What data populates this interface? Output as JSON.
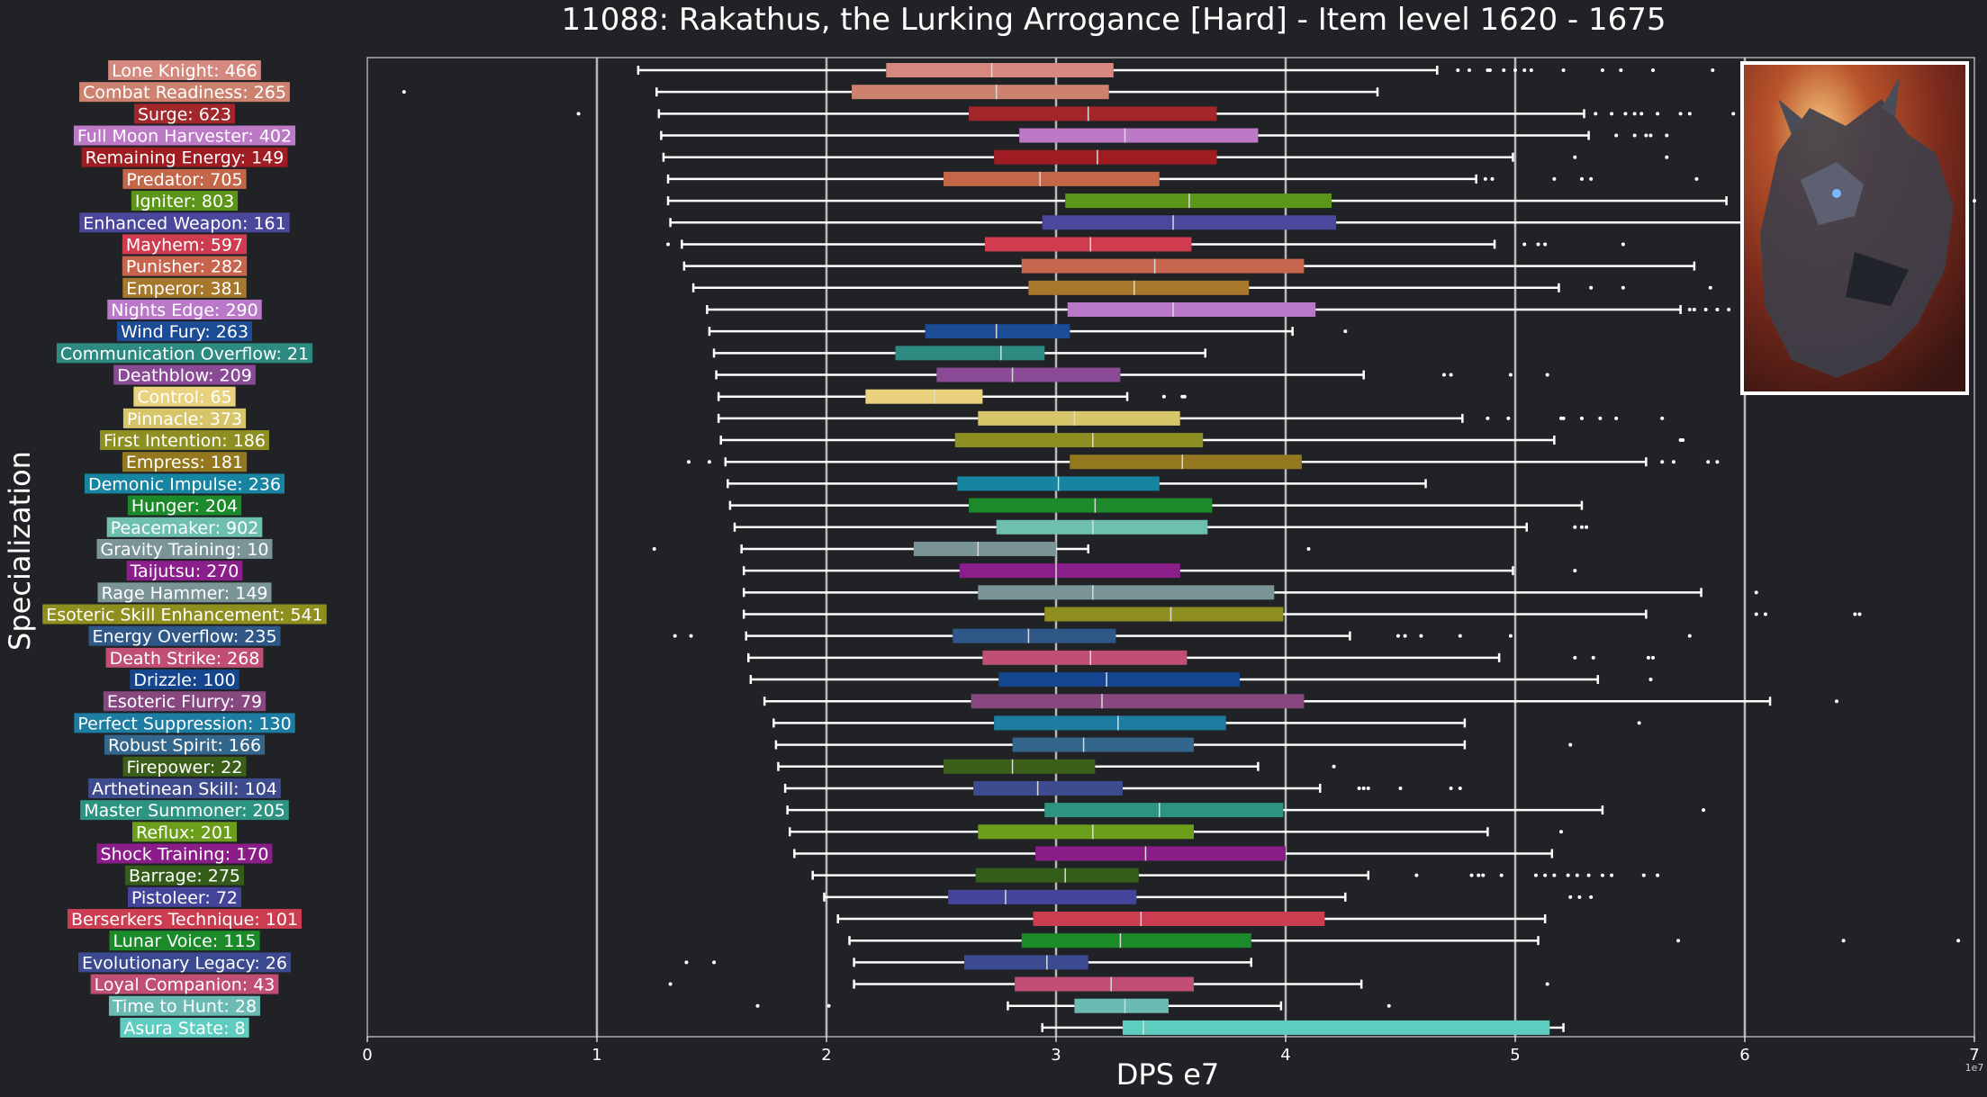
{
  "chart_data": {
    "type": "box",
    "title": "11088: Rakathus, the Lurking Arrogance [Hard] - Item level 1620 - 1675",
    "xlabel": "DPS e7",
    "ylabel": "Specialization",
    "x_exponent_label": "1e7",
    "xlim": [
      0,
      7
    ],
    "x_ticks": [
      0,
      1,
      2,
      3,
      4,
      5,
      6,
      7
    ],
    "grid": "vertical",
    "series": [
      {
        "label": "Lone Knight: 466",
        "color": "#d5897e",
        "whisker_low": 1.18,
        "q1": 2.26,
        "median": 2.72,
        "q3": 3.25,
        "whisker_high": 4.66,
        "outliers": [
          4.75,
          4.8,
          4.88,
          4.89,
          4.95,
          5.0,
          5.04,
          5.07,
          5.21,
          5.38,
          5.46,
          5.6,
          5.86
        ]
      },
      {
        "label": "Combat Readiness: 265",
        "color": "#cd8270",
        "whisker_low": 1.26,
        "q1": 2.11,
        "median": 2.74,
        "q3": 3.23,
        "whisker_high": 4.4,
        "outliers": [
          0.16
        ]
      },
      {
        "label": "Surge: 623",
        "color": "#a3262a",
        "whisker_low": 1.27,
        "q1": 2.62,
        "median": 3.14,
        "q3": 3.7,
        "whisker_high": 5.3,
        "outliers": [
          0.92,
          5.35,
          5.42,
          5.48,
          5.52,
          5.55,
          5.62,
          5.72,
          5.76,
          5.95
        ]
      },
      {
        "label": "Full Moon Harvester: 402",
        "color": "#bb79c6",
        "whisker_low": 1.28,
        "q1": 2.84,
        "median": 3.3,
        "q3": 3.88,
        "whisker_high": 5.32,
        "outliers": [
          5.44,
          5.52,
          5.57,
          5.59,
          5.66
        ]
      },
      {
        "label": "Remaining Energy: 149",
        "color": "#9e1c22",
        "whisker_low": 1.29,
        "q1": 2.73,
        "median": 3.18,
        "q3": 3.7,
        "whisker_high": 4.99,
        "outliers": [
          5.26,
          5.66
        ]
      },
      {
        "label": "Predator: 705",
        "color": "#c46749",
        "whisker_low": 1.31,
        "q1": 2.51,
        "median": 2.93,
        "q3": 3.45,
        "whisker_high": 4.83,
        "outliers": [
          4.87,
          4.9,
          5.17,
          5.29,
          5.33,
          5.79
        ]
      },
      {
        "label": "Igniter: 803",
        "color": "#5c9618",
        "whisker_low": 1.31,
        "q1": 3.04,
        "median": 3.58,
        "q3": 4.2,
        "whisker_high": 5.92,
        "outliers": [
          7.0
        ]
      },
      {
        "label": "Enhanced Weapon: 161",
        "color": "#4b479c",
        "whisker_low": 1.32,
        "q1": 2.94,
        "median": 3.51,
        "q3": 4.22,
        "whisker_high": 6.12,
        "outliers": []
      },
      {
        "label": "Mayhem: 597",
        "color": "#cf3b4f",
        "whisker_low": 1.37,
        "q1": 2.69,
        "median": 3.15,
        "q3": 3.59,
        "whisker_high": 4.91,
        "outliers": [
          1.31,
          5.04,
          5.1,
          5.13,
          5.47
        ]
      },
      {
        "label": "Punisher: 282",
        "color": "#c6644d",
        "whisker_low": 1.38,
        "q1": 2.85,
        "median": 3.43,
        "q3": 4.08,
        "whisker_high": 5.78,
        "outliers": []
      },
      {
        "label": "Emperor: 381",
        "color": "#a7782b",
        "whisker_low": 1.42,
        "q1": 2.88,
        "median": 3.34,
        "q3": 3.84,
        "whisker_high": 5.19,
        "outliers": [
          5.33,
          5.47,
          5.85
        ]
      },
      {
        "label": "Nights Edge: 290",
        "color": "#ba78c9",
        "whisker_low": 1.48,
        "q1": 3.05,
        "median": 3.51,
        "q3": 4.13,
        "whisker_high": 5.72,
        "outliers": [
          5.76,
          5.78,
          5.83,
          5.88,
          5.93,
          6.01
        ]
      },
      {
        "label": "Wind Fury: 263",
        "color": "#1c4c95",
        "whisker_low": 1.49,
        "q1": 2.43,
        "median": 2.74,
        "q3": 3.06,
        "whisker_high": 4.03,
        "outliers": [
          4.26
        ]
      },
      {
        "label": "Communication Overflow: 21",
        "color": "#2c8a81",
        "whisker_low": 1.51,
        "q1": 2.3,
        "median": 2.76,
        "q3": 2.95,
        "whisker_high": 3.65,
        "outliers": []
      },
      {
        "label": "Deathblow: 209",
        "color": "#8a4a95",
        "whisker_low": 1.52,
        "q1": 2.48,
        "median": 2.81,
        "q3": 3.28,
        "whisker_high": 4.34,
        "outliers": [
          4.69,
          4.72,
          4.98,
          5.14
        ]
      },
      {
        "label": "Control: 65",
        "color": "#e9d17e",
        "whisker_low": 1.53,
        "q1": 2.17,
        "median": 2.47,
        "q3": 2.68,
        "whisker_high": 3.31,
        "outliers": [
          3.47,
          3.55,
          3.56
        ]
      },
      {
        "label": "Pinnacle: 373",
        "color": "#d7c56a",
        "whisker_low": 1.53,
        "q1": 2.66,
        "median": 3.08,
        "q3": 3.54,
        "whisker_high": 4.77,
        "outliers": [
          4.88,
          4.97,
          5.2,
          5.21,
          5.29,
          5.37,
          5.44,
          5.64
        ]
      },
      {
        "label": "First Intention: 186",
        "color": "#8d8f22",
        "whisker_low": 1.54,
        "q1": 2.56,
        "median": 3.16,
        "q3": 3.64,
        "whisker_high": 5.17,
        "outliers": [
          5.72,
          5.73
        ]
      },
      {
        "label": "Empress: 181",
        "color": "#93781f",
        "whisker_low": 1.56,
        "q1": 3.06,
        "median": 3.55,
        "q3": 4.07,
        "whisker_high": 5.57,
        "outliers": [
          1.4,
          1.49,
          5.64,
          5.69,
          5.84,
          5.88
        ]
      },
      {
        "label": "Demonic Impulse: 236",
        "color": "#1784a1",
        "whisker_low": 1.57,
        "q1": 2.57,
        "median": 3.01,
        "q3": 3.45,
        "whisker_high": 4.61,
        "outliers": []
      },
      {
        "label": "Hunger: 204",
        "color": "#1c8a2a",
        "whisker_low": 1.58,
        "q1": 2.62,
        "median": 3.17,
        "q3": 3.68,
        "whisker_high": 5.29,
        "outliers": []
      },
      {
        "label": "Peacemaker: 902",
        "color": "#6fbfb0",
        "whisker_low": 1.6,
        "q1": 2.74,
        "median": 3.16,
        "q3": 3.66,
        "whisker_high": 5.05,
        "outliers": [
          5.26,
          5.29,
          5.31
        ]
      },
      {
        "label": "Gravity Training: 10",
        "color": "#7a9497",
        "whisker_low": 1.63,
        "q1": 2.38,
        "median": 2.66,
        "q3": 3.0,
        "whisker_high": 3.14,
        "outliers": [
          1.25,
          4.1
        ]
      },
      {
        "label": "Taijutsu: 270",
        "color": "#8a1f8c",
        "whisker_low": 1.64,
        "q1": 2.58,
        "median": 3.0,
        "q3": 3.54,
        "whisker_high": 4.99,
        "outliers": [
          5.26
        ]
      },
      {
        "label": "Rage Hammer: 149",
        "color": "#7b9498",
        "whisker_low": 1.64,
        "q1": 2.66,
        "median": 3.16,
        "q3": 3.95,
        "whisker_high": 5.81,
        "outliers": [
          6.05
        ]
      },
      {
        "label": "Esoteric Skill Enhancement: 541",
        "color": "#8f8f20",
        "whisker_low": 1.64,
        "q1": 2.95,
        "median": 3.5,
        "q3": 3.99,
        "whisker_high": 5.57,
        "outliers": [
          6.05,
          6.09,
          6.48,
          6.5
        ]
      },
      {
        "label": "Energy Overflow: 235",
        "color": "#2f5787",
        "whisker_low": 1.65,
        "q1": 2.55,
        "median": 2.88,
        "q3": 3.26,
        "whisker_high": 4.28,
        "outliers": [
          1.34,
          1.41,
          4.49,
          4.52,
          4.59,
          4.76,
          4.98,
          5.76
        ]
      },
      {
        "label": "Death Strike: 268",
        "color": "#c14f73",
        "whisker_low": 1.66,
        "q1": 2.68,
        "median": 3.15,
        "q3": 3.57,
        "whisker_high": 4.93,
        "outliers": [
          5.26,
          5.34,
          5.58,
          5.6
        ]
      },
      {
        "label": "Drizzle: 100",
        "color": "#16458f",
        "whisker_low": 1.67,
        "q1": 2.75,
        "median": 3.22,
        "q3": 3.8,
        "whisker_high": 5.36,
        "outliers": [
          5.59
        ]
      },
      {
        "label": "Esoteric Flurry: 79",
        "color": "#874880",
        "whisker_low": 1.73,
        "q1": 2.63,
        "median": 3.2,
        "q3": 4.08,
        "whisker_high": 6.11,
        "outliers": [
          6.4
        ]
      },
      {
        "label": "Perfect Suppression: 130",
        "color": "#1c7ca1",
        "whisker_low": 1.77,
        "q1": 2.73,
        "median": 3.27,
        "q3": 3.74,
        "whisker_high": 4.78,
        "outliers": [
          5.54
        ]
      },
      {
        "label": "Robust Spirit: 166",
        "color": "#34658b",
        "whisker_low": 1.78,
        "q1": 2.81,
        "median": 3.12,
        "q3": 3.6,
        "whisker_high": 4.78,
        "outliers": [
          5.24
        ]
      },
      {
        "label": "Firepower: 22",
        "color": "#3b5e19",
        "whisker_low": 1.79,
        "q1": 2.51,
        "median": 2.81,
        "q3": 3.17,
        "whisker_high": 3.88,
        "outliers": [
          4.21
        ]
      },
      {
        "label": "Arthetinean Skill: 104",
        "color": "#3e4b8f",
        "whisker_low": 1.82,
        "q1": 2.64,
        "median": 2.92,
        "q3": 3.29,
        "whisker_high": 4.15,
        "outliers": [
          4.32,
          4.34,
          4.36,
          4.5,
          4.72,
          4.76
        ]
      },
      {
        "label": "Master Summoner: 205",
        "color": "#2d9481",
        "whisker_low": 1.83,
        "q1": 2.95,
        "median": 3.45,
        "q3": 3.99,
        "whisker_high": 5.38,
        "outliers": [
          5.82
        ]
      },
      {
        "label": "Reflux: 201",
        "color": "#6b9e1b",
        "whisker_low": 1.84,
        "q1": 2.66,
        "median": 3.16,
        "q3": 3.6,
        "whisker_high": 4.88,
        "outliers": [
          5.2
        ]
      },
      {
        "label": "Shock Training: 170",
        "color": "#8b1d88",
        "whisker_low": 1.86,
        "q1": 2.91,
        "median": 3.39,
        "q3": 4.0,
        "whisker_high": 5.16,
        "outliers": []
      },
      {
        "label": "Barrage: 275",
        "color": "#355d1a",
        "whisker_low": 1.94,
        "q1": 2.65,
        "median": 3.04,
        "q3": 3.36,
        "whisker_high": 4.36,
        "outliers": [
          4.57,
          4.81,
          4.84,
          4.86,
          4.94,
          5.09,
          5.13,
          5.17,
          5.23,
          5.27,
          5.32,
          5.38,
          5.42,
          5.56,
          5.62
        ]
      },
      {
        "label": "Pistoleer: 72",
        "color": "#44449a",
        "whisker_low": 1.99,
        "q1": 2.53,
        "median": 2.78,
        "q3": 3.35,
        "whisker_high": 4.26,
        "outliers": [
          5.24,
          5.28,
          5.33
        ]
      },
      {
        "label": "Berserkers Technique: 101",
        "color": "#cc3d52",
        "whisker_low": 2.05,
        "q1": 2.9,
        "median": 3.37,
        "q3": 4.17,
        "whisker_high": 5.13,
        "outliers": []
      },
      {
        "label": "Lunar Voice: 115",
        "color": "#1b8a28",
        "whisker_low": 2.1,
        "q1": 2.85,
        "median": 3.28,
        "q3": 3.85,
        "whisker_high": 5.1,
        "outliers": [
          5.71,
          6.43,
          6.93
        ]
      },
      {
        "label": "Evolutionary Legacy: 26",
        "color": "#3c4a91",
        "whisker_low": 2.12,
        "q1": 2.6,
        "median": 2.96,
        "q3": 3.14,
        "whisker_high": 3.85,
        "outliers": [
          1.39,
          1.51
        ]
      },
      {
        "label": "Loyal Companion: 43",
        "color": "#c14f75",
        "whisker_low": 2.12,
        "q1": 2.82,
        "median": 3.24,
        "q3": 3.6,
        "whisker_high": 4.33,
        "outliers": [
          1.32,
          5.14
        ]
      },
      {
        "label": "Time to Hunt: 28",
        "color": "#6bbab3",
        "whisker_low": 2.79,
        "q1": 3.08,
        "median": 3.3,
        "q3": 3.49,
        "whisker_high": 3.98,
        "outliers": [
          1.7,
          2.01,
          4.45
        ]
      },
      {
        "label": "Asura State: 8",
        "color": "#5ecdc0",
        "whisker_low": 2.94,
        "q1": 3.29,
        "median": 3.38,
        "q3": 5.15,
        "whisker_high": 5.21,
        "outliers": []
      }
    ]
  },
  "image": {
    "icon": "dragon-portrait-icon"
  }
}
